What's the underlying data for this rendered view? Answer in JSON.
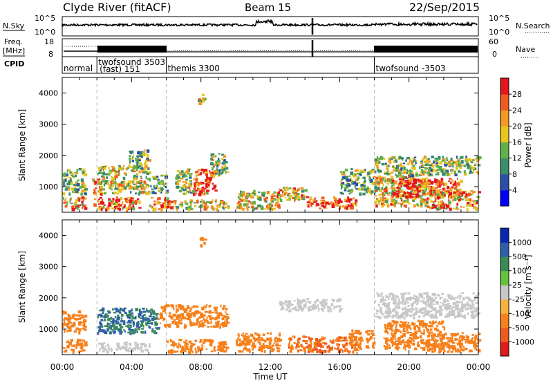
{
  "header": {
    "station": "Clyde River (fitACF)",
    "beam": "Beam 15",
    "date": "22/Sep/2015"
  },
  "noise_panel": {
    "left_label": "N.Sky",
    "right_label": "N.Search",
    "right_legend_style": "dotted",
    "left_ticks": [
      "10^5",
      "10^0"
    ],
    "right_ticks": [
      "10^5",
      "10^0"
    ]
  },
  "freq_panel": {
    "left_label_top": "Freq.",
    "left_label_bottom": "[MHz]",
    "right_label": "Nave",
    "right_legend_style": "dotted",
    "left_ticks": [
      "18",
      "8"
    ],
    "right_ticks": [
      "60",
      "0"
    ]
  },
  "cpid_panel": {
    "label": "CPID",
    "segments": [
      {
        "name": "normal",
        "start_hour": 0.0
      },
      {
        "name": "twofsound 3503",
        "sub": "(fast) 151",
        "start_hour": 2.0
      },
      {
        "name": "themis 3300",
        "start_hour": 6.0
      },
      {
        "name": "twofsound -3503",
        "start_hour": 18.0
      }
    ]
  },
  "colors": {
    "power_scale": [
      "#0000ff",
      "#2a4fa8",
      "#3b8c6a",
      "#5fb04a",
      "#e7c51c",
      "#f39a24",
      "#ef5a1e",
      "#e4151b"
    ],
    "velocity_scale": [
      "#0a27b0",
      "#2f5fab",
      "#3a8a58",
      "#64c23c",
      "#c8c8c8",
      "#f6b23b",
      "#f7801a",
      "#ef5a1e",
      "#e11b1b"
    ]
  },
  "chart_data": [
    {
      "type": "heatmap",
      "panel": "power",
      "ylabel": "Slant Range [km]",
      "yticks": [
        1000,
        2000,
        3000,
        4000
      ],
      "ylim": [
        180,
        4500
      ],
      "xlim": [
        0,
        24
      ],
      "colorbar": {
        "label": "Power [dB]",
        "ticks": [
          "28",
          "24",
          "20",
          "16",
          "12",
          "8",
          "4"
        ],
        "range": [
          0,
          32
        ]
      },
      "regions": [
        {
          "h0": 0.0,
          "h1": 1.3,
          "r0": 300,
          "r1": 700,
          "v": 22
        },
        {
          "h0": 0.0,
          "h1": 1.3,
          "r0": 800,
          "r1": 1600,
          "v": 14
        },
        {
          "h0": 1.7,
          "h1": 2.2,
          "r0": 700,
          "r1": 1300,
          "v": 26
        },
        {
          "h0": 1.8,
          "h1": 4.5,
          "r0": 300,
          "r1": 700,
          "v": 24
        },
        {
          "h0": 2.0,
          "h1": 5.0,
          "r0": 800,
          "r1": 1700,
          "v": 17
        },
        {
          "h0": 3.8,
          "h1": 5.0,
          "r0": 1600,
          "r1": 2200,
          "v": 13
        },
        {
          "h0": 5.0,
          "h1": 6.5,
          "r0": 300,
          "r1": 700,
          "v": 24
        },
        {
          "h0": 5.0,
          "h1": 6.0,
          "r0": 800,
          "r1": 1400,
          "v": 12
        },
        {
          "h0": 6.5,
          "h1": 9.5,
          "r0": 300,
          "r1": 600,
          "v": 18
        },
        {
          "h0": 7.5,
          "h1": 8.8,
          "r0": 800,
          "r1": 1600,
          "v": 27
        },
        {
          "h0": 6.5,
          "h1": 7.5,
          "r0": 800,
          "r1": 1600,
          "v": 15
        },
        {
          "h0": 8.5,
          "h1": 9.5,
          "r0": 1400,
          "r1": 2100,
          "v": 14
        },
        {
          "h0": 7.8,
          "h1": 8.2,
          "r0": 3700,
          "r1": 4000,
          "v": 18
        },
        {
          "h0": 10.0,
          "h1": 12.5,
          "r0": 300,
          "r1": 900,
          "v": 19
        },
        {
          "h0": 12.0,
          "h1": 14.0,
          "r0": 600,
          "r1": 1000,
          "v": 20
        },
        {
          "h0": 14.0,
          "h1": 17.0,
          "r0": 300,
          "r1": 700,
          "v": 27
        },
        {
          "h0": 16.0,
          "h1": 18.0,
          "r0": 800,
          "r1": 1600,
          "v": 14
        },
        {
          "h0": 18.0,
          "h1": 21.0,
          "r0": 400,
          "r1": 1400,
          "v": 20
        },
        {
          "h0": 19.0,
          "h1": 23.0,
          "r0": 700,
          "r1": 1300,
          "v": 28
        },
        {
          "h0": 18.0,
          "h1": 24.0,
          "r0": 1400,
          "r1": 2000,
          "v": 15
        },
        {
          "h0": 21.0,
          "h1": 24.0,
          "r0": 300,
          "r1": 900,
          "v": 22
        }
      ]
    },
    {
      "type": "heatmap",
      "panel": "velocity",
      "ylabel": "Slant Range [km]",
      "yticks": [
        1000,
        2000,
        3000,
        4000
      ],
      "ylim": [
        180,
        4500
      ],
      "xlim": [
        0,
        24
      ],
      "xlabel": "Time UT",
      "xticks": [
        "00:00",
        "04:00",
        "08:00",
        "12:00",
        "16:00",
        "20:00",
        "00:00"
      ],
      "colorbar": {
        "label": "Velocity [m s⁻¹]",
        "ticks": [
          "1000",
          "500",
          "100",
          "25",
          "-25",
          "-100",
          "-500",
          "-1000"
        ],
        "range": [
          -1200,
          1200
        ]
      },
      "regions": [
        {
          "h0": 0.0,
          "h1": 1.3,
          "r0": 300,
          "r1": 700,
          "v": -300
        },
        {
          "h0": 0.0,
          "h1": 1.3,
          "r0": 900,
          "r1": 1600,
          "v": -200
        },
        {
          "h0": 2.0,
          "h1": 5.0,
          "r0": 300,
          "r1": 600,
          "v": 15
        },
        {
          "h0": 2.0,
          "h1": 5.5,
          "r0": 900,
          "r1": 1700,
          "v": 300
        },
        {
          "h0": 5.5,
          "h1": 9.5,
          "r0": 1100,
          "r1": 1800,
          "v": -300
        },
        {
          "h0": 6.0,
          "h1": 9.5,
          "r0": 300,
          "r1": 700,
          "v": -200
        },
        {
          "h0": 7.8,
          "h1": 8.2,
          "r0": 3700,
          "r1": 3950,
          "v": -150
        },
        {
          "h0": 10.0,
          "h1": 12.5,
          "r0": 300,
          "r1": 900,
          "v": -300
        },
        {
          "h0": 12.5,
          "h1": 16.0,
          "r0": 1600,
          "r1": 2000,
          "v": 0
        },
        {
          "h0": 13.0,
          "h1": 17.0,
          "r0": 300,
          "r1": 800,
          "v": -400
        },
        {
          "h0": 16.5,
          "h1": 18.0,
          "r0": 400,
          "r1": 1000,
          "v": -200
        },
        {
          "h0": 18.0,
          "h1": 24.0,
          "r0": 1400,
          "r1": 2200,
          "v": 5
        },
        {
          "h0": 18.5,
          "h1": 22.0,
          "r0": 400,
          "r1": 1300,
          "v": -300
        },
        {
          "h0": 21.0,
          "h1": 24.0,
          "r0": 300,
          "r1": 900,
          "v": -250
        }
      ]
    }
  ]
}
